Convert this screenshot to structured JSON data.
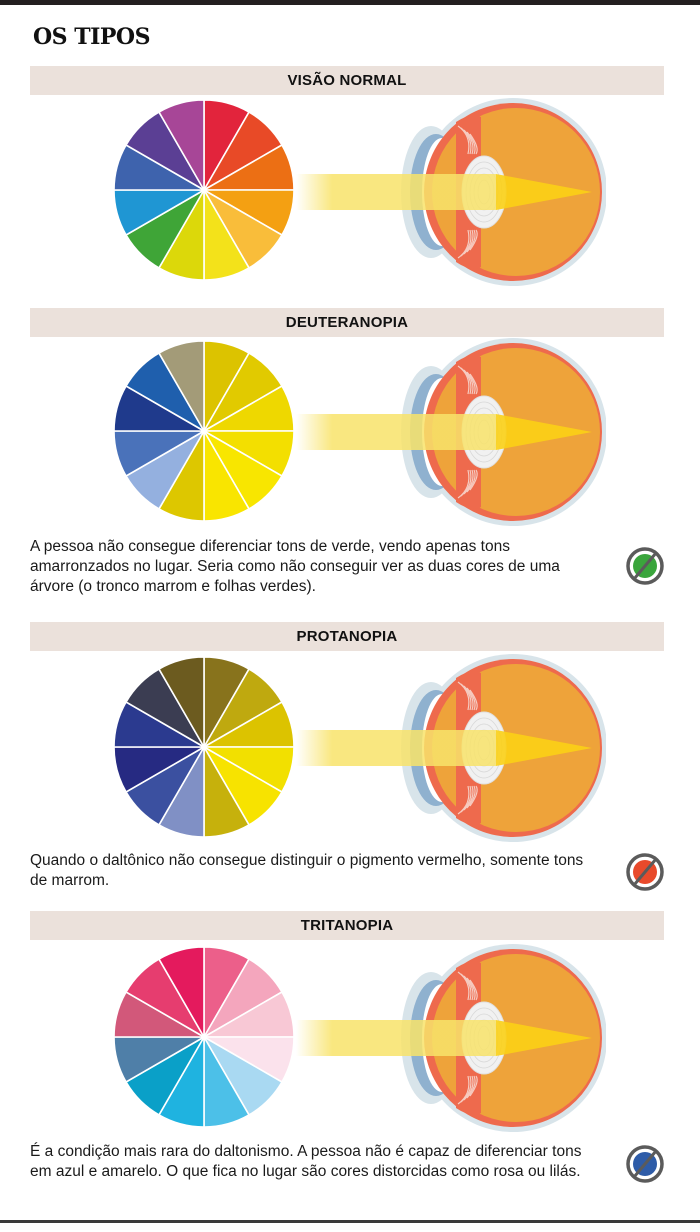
{
  "page": {
    "title": "OS TIPOS"
  },
  "sections": [
    {
      "id": "normal",
      "label": "VISÃO NORMAL",
      "wheel_colors": [
        "#e2243c",
        "#e84a27",
        "#ec6f14",
        "#f4a012",
        "#f9bd3a",
        "#f3e21a",
        "#dcd80a",
        "#3fa537",
        "#1f96d3",
        "#3e63ad",
        "#5b3f94",
        "#a74697"
      ],
      "description": null,
      "icon_color": null
    },
    {
      "id": "deuteranopia",
      "label": "DEUTERANOPIA",
      "wheel_colors": [
        "#dcc300",
        "#e1ca00",
        "#eed800",
        "#f3df00",
        "#f8e600",
        "#f9e500",
        "#ddc700",
        "#94b0df",
        "#4a72ba",
        "#1f3a8c",
        "#1f5fad",
        "#a39b78"
      ],
      "description": "A pessoa não consegue diferenciar tons de verde, vendo apenas tons amarronzados no lugar. Seria como não conseguir ver as duas cores de uma árvore (o tronco marrom e folhas verdes).",
      "icon_color": "#3aa53c"
    },
    {
      "id": "protanopia",
      "label": "PROTANOPIA",
      "wheel_colors": [
        "#88731c",
        "#bfa90f",
        "#dcc300",
        "#f2e000",
        "#f7e300",
        "#c6b10c",
        "#8090c5",
        "#3b50a0",
        "#262a82",
        "#2b3a8f",
        "#3b3d52",
        "#6c5b1f"
      ],
      "description": "Quando o daltônico não consegue distinguir o pigmento vermelho, somente tons de marrom.",
      "icon_color": "#e84a2b"
    },
    {
      "id": "tritanopia",
      "label": "TRITANOPIA",
      "wheel_colors": [
        "#ec5f8a",
        "#f4a6bd",
        "#f8c8d5",
        "#fbe2ec",
        "#a9d9f2",
        "#4cc0e8",
        "#1fb3e0",
        "#0aa0c8",
        "#4f7fa8",
        "#d2587a",
        "#e63d6f",
        "#e41a5d"
      ],
      "description": "É a condição mais rara do daltonismo. A pessoa não é capaz de diferenciar tons em azul e amarelo. O que fica no lugar são cores distorcidas como rosa ou lilás.",
      "icon_color": "#2e5ca8"
    }
  ],
  "icons": {
    "eye": "eye-diagram-icon",
    "no_color": "prohibited-color-icon"
  },
  "colors": {
    "section_bar": "#ebe1db",
    "eye_body": "#eea33a",
    "eye_rim": "#ee6a4d",
    "eye_sclera": "#d8e4ea",
    "light_beam": "#f8e36a"
  }
}
